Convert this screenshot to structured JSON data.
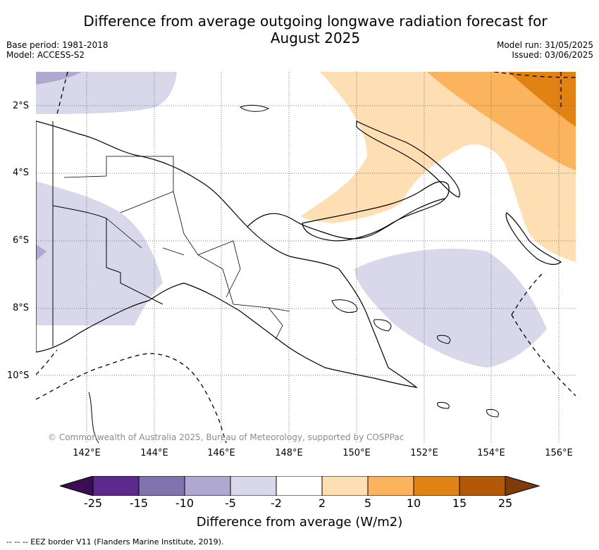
{
  "title_line1": "Difference from average outgoing longwave radiation forecast for",
  "title_line2": "August 2025",
  "base_period": "Base period: 1981-2018",
  "model": "Model: ACCESS-S2",
  "model_run": "Model run: 31/05/2025",
  "issued": "Issued: 03/06/2025",
  "lat_labels": [
    "2°S",
    "4°S",
    "6°S",
    "8°S",
    "10°S"
  ],
  "lon_labels": [
    "142°E",
    "144°E",
    "146°E",
    "148°E",
    "150°E",
    "152°E",
    "154°E",
    "156°E"
  ],
  "copyright": "© Commonwealth of Australia 2025, Bureau of Meteorology, supported by COSPPac",
  "colorbar": {
    "title": "Difference from average (W/m2)",
    "ticks": [
      "-25",
      "-15",
      "-10",
      "-5",
      "-2",
      "2",
      "5",
      "10",
      "15",
      "25"
    ],
    "colors": [
      "#3b0d52",
      "#5b2a8c",
      "#8173ad",
      "#afa9d2",
      "#d8d8ea",
      "#ffffff",
      "#fddfb3",
      "#fbb35e",
      "#e08214",
      "#b35806",
      "#7f3b08"
    ]
  },
  "footnote": "-- -- -- EEZ border V11 (Flanders Marine Institute, 2019)."
}
